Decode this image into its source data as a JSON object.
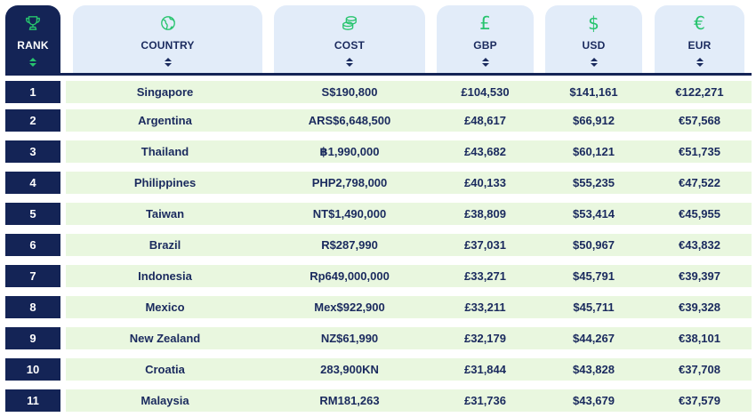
{
  "columns": {
    "rank": {
      "label": "RANK",
      "icon": "trophy-icon"
    },
    "country": {
      "label": "COUNTRY",
      "icon": "globe-icon"
    },
    "cost": {
      "label": "COST",
      "icon": "coins-icon"
    },
    "gbp": {
      "label": "GBP",
      "symbol": "£"
    },
    "usd": {
      "label": "USD",
      "symbol": "$"
    },
    "eur": {
      "label": "EUR",
      "symbol": "€"
    }
  },
  "colors": {
    "navy": "#142456",
    "green": "#27c46e",
    "header_bg": "#e2ecf9",
    "row_bg": "#e9f7df"
  },
  "rows": [
    {
      "rank": "1",
      "country": "Singapore",
      "cost": "S$190,800",
      "gbp": "£104,530",
      "usd": "$141,161",
      "eur": "€122,271"
    },
    {
      "rank": "2",
      "country": "Argentina",
      "cost": "ARS$6,648,500",
      "gbp": "£48,617",
      "usd": "$66,912",
      "eur": "€57,568"
    },
    {
      "rank": "3",
      "country": "Thailand",
      "cost": "฿1,990,000",
      "gbp": "£43,682",
      "usd": "$60,121",
      "eur": "€51,735"
    },
    {
      "rank": "4",
      "country": "Philippines",
      "cost": "PHP2,798,000",
      "gbp": "£40,133",
      "usd": "$55,235",
      "eur": "€47,522"
    },
    {
      "rank": "5",
      "country": "Taiwan",
      "cost": "NT$1,490,000",
      "gbp": "£38,809",
      "usd": "$53,414",
      "eur": "€45,955"
    },
    {
      "rank": "6",
      "country": "Brazil",
      "cost": "R$287,990",
      "gbp": "£37,031",
      "usd": "$50,967",
      "eur": "€43,832"
    },
    {
      "rank": "7",
      "country": "Indonesia",
      "cost": "Rp649,000,000",
      "gbp": "£33,271",
      "usd": "$45,791",
      "eur": "€39,397"
    },
    {
      "rank": "8",
      "country": "Mexico",
      "cost": "Mex$922,900",
      "gbp": "£33,211",
      "usd": "$45,711",
      "eur": "€39,328"
    },
    {
      "rank": "9",
      "country": "New Zealand",
      "cost": "NZ$61,990",
      "gbp": "£32,179",
      "usd": "$44,267",
      "eur": "€38,101"
    },
    {
      "rank": "10",
      "country": "Croatia",
      "cost": "283,900KN",
      "gbp": "£31,844",
      "usd": "$43,828",
      "eur": "€37,708"
    },
    {
      "rank": "11",
      "country": "Malaysia",
      "cost": "RM181,263",
      "gbp": "£31,736",
      "usd": "$43,679",
      "eur": "€37,579"
    }
  ]
}
